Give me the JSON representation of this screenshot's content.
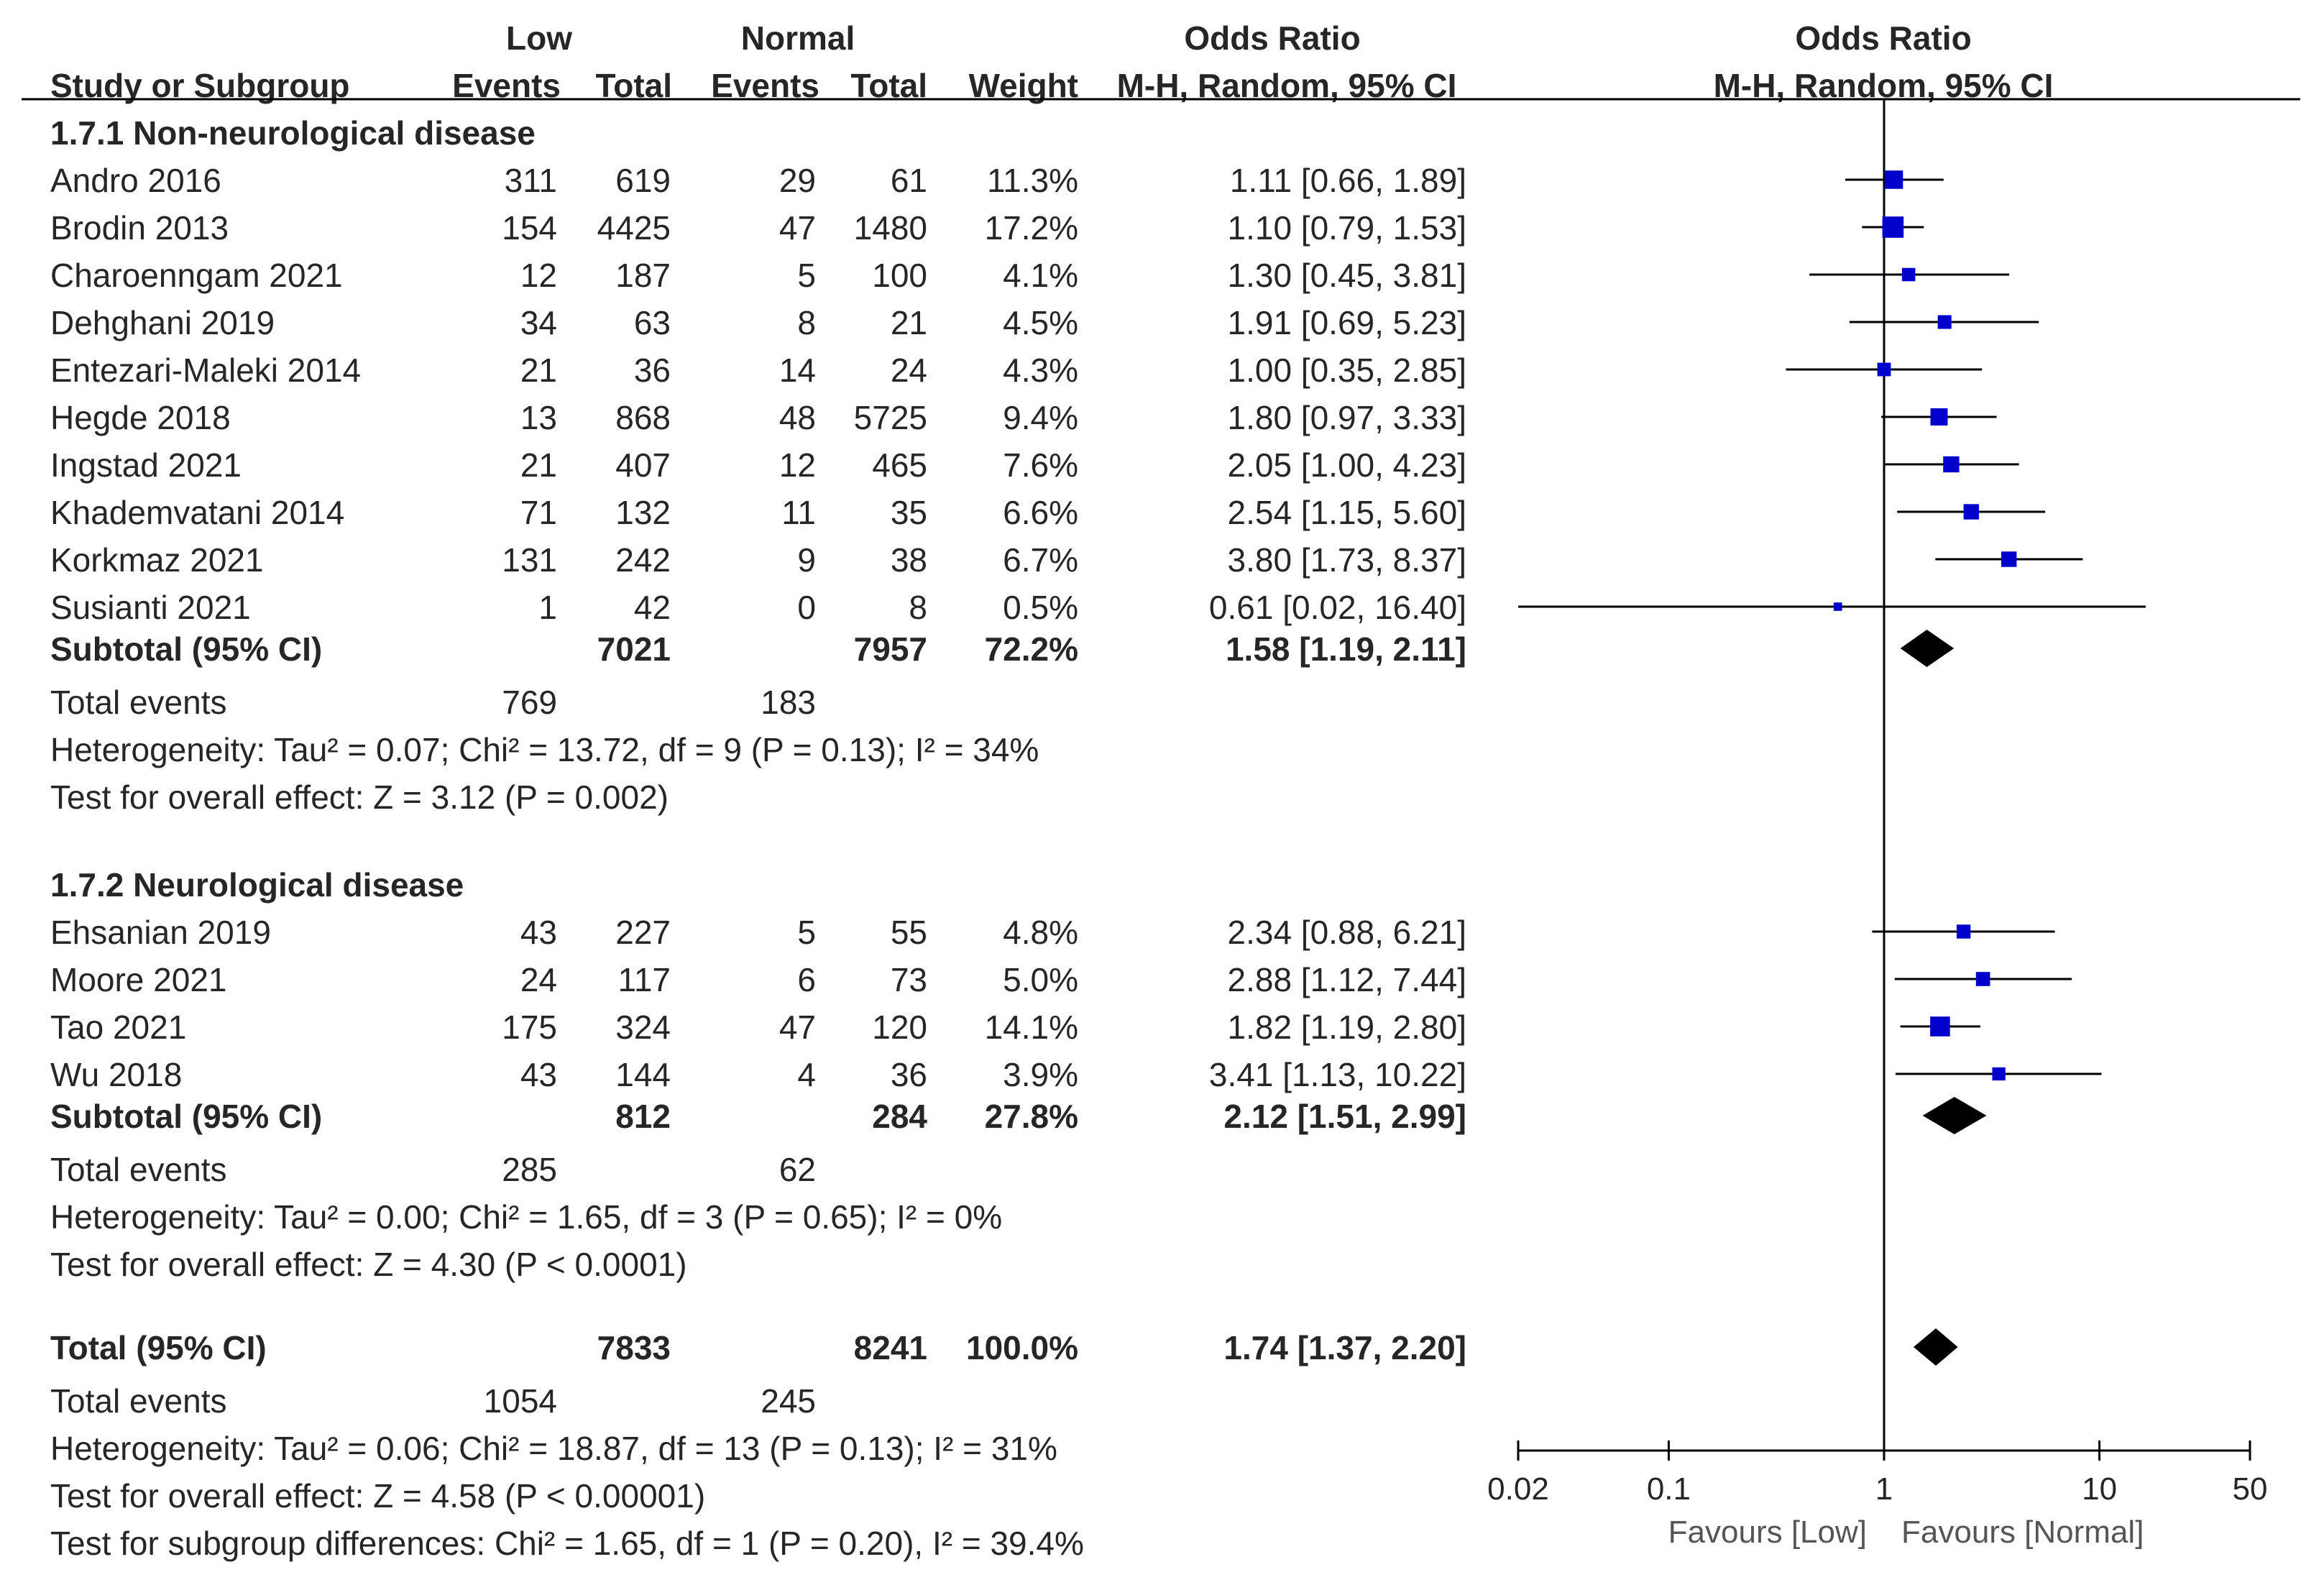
{
  "headers": {
    "low": "Low",
    "normal": "Normal",
    "odds_ratio_table": "Odds Ratio",
    "odds_ratio_plot": "Odds Ratio",
    "study": "Study or Subgroup",
    "events_low": "Events",
    "total_low": "Total",
    "events_normal": "Events",
    "total_normal": "Total",
    "weight": "Weight",
    "method_table": "M-H, Random, 95% CI",
    "method_plot": "M-H, Random, 95% CI"
  },
  "groups": [
    {
      "title": "1.7.1 Non-neurological disease",
      "studies": [
        {
          "name": "Andro 2016",
          "ev_low": "311",
          "tot_low": "619",
          "ev_norm": "29",
          "tot_norm": "61",
          "weight": "11.3%",
          "ci_text": "1.11 [0.66, 1.89]"
        },
        {
          "name": "Brodin 2013",
          "ev_low": "154",
          "tot_low": "4425",
          "ev_norm": "47",
          "tot_norm": "1480",
          "weight": "17.2%",
          "ci_text": "1.10 [0.79, 1.53]"
        },
        {
          "name": "Charoenngam 2021",
          "ev_low": "12",
          "tot_low": "187",
          "ev_norm": "5",
          "tot_norm": "100",
          "weight": "4.1%",
          "ci_text": "1.30 [0.45, 3.81]"
        },
        {
          "name": "Dehghani 2019",
          "ev_low": "34",
          "tot_low": "63",
          "ev_norm": "8",
          "tot_norm": "21",
          "weight": "4.5%",
          "ci_text": "1.91 [0.69, 5.23]"
        },
        {
          "name": "Entezari-Maleki 2014",
          "ev_low": "21",
          "tot_low": "36",
          "ev_norm": "14",
          "tot_norm": "24",
          "weight": "4.3%",
          "ci_text": "1.00 [0.35, 2.85]"
        },
        {
          "name": "Hegde 2018",
          "ev_low": "13",
          "tot_low": "868",
          "ev_norm": "48",
          "tot_norm": "5725",
          "weight": "9.4%",
          "ci_text": "1.80 [0.97, 3.33]"
        },
        {
          "name": "Ingstad 2021",
          "ev_low": "21",
          "tot_low": "407",
          "ev_norm": "12",
          "tot_norm": "465",
          "weight": "7.6%",
          "ci_text": "2.05 [1.00, 4.23]"
        },
        {
          "name": "Khademvatani 2014",
          "ev_low": "71",
          "tot_low": "132",
          "ev_norm": "11",
          "tot_norm": "35",
          "weight": "6.6%",
          "ci_text": "2.54 [1.15, 5.60]"
        },
        {
          "name": "Korkmaz 2021",
          "ev_low": "131",
          "tot_low": "242",
          "ev_norm": "9",
          "tot_norm": "38",
          "weight": "6.7%",
          "ci_text": "3.80 [1.73, 8.37]"
        },
        {
          "name": "Susianti 2021",
          "ev_low": "1",
          "tot_low": "42",
          "ev_norm": "0",
          "tot_norm": "8",
          "weight": "0.5%",
          "ci_text": "0.61 [0.02, 16.40]"
        }
      ],
      "subtotal": {
        "label": "Subtotal (95% CI)",
        "tot_low": "7021",
        "tot_norm": "7957",
        "weight": "72.2%",
        "ci_text": "1.58 [1.19, 2.11]"
      },
      "total_events": {
        "label": "Total events",
        "low": "769",
        "normal": "183"
      },
      "heterogeneity": "Heterogeneity: Tau² = 0.07; Chi² = 13.72, df = 9 (P = 0.13); I² = 34%",
      "overall": "Test for overall effect: Z = 3.12 (P = 0.002)"
    },
    {
      "title": "1.7.2 Neurological disease",
      "studies": [
        {
          "name": "Ehsanian 2019",
          "ev_low": "43",
          "tot_low": "227",
          "ev_norm": "5",
          "tot_norm": "55",
          "weight": "4.8%",
          "ci_text": "2.34 [0.88, 6.21]"
        },
        {
          "name": "Moore 2021",
          "ev_low": "24",
          "tot_low": "117",
          "ev_norm": "6",
          "tot_norm": "73",
          "weight": "5.0%",
          "ci_text": "2.88 [1.12, 7.44]"
        },
        {
          "name": "Tao 2021",
          "ev_low": "175",
          "tot_low": "324",
          "ev_norm": "47",
          "tot_norm": "120",
          "weight": "14.1%",
          "ci_text": "1.82 [1.19, 2.80]"
        },
        {
          "name": "Wu 2018",
          "ev_low": "43",
          "tot_low": "144",
          "ev_norm": "4",
          "tot_norm": "36",
          "weight": "3.9%",
          "ci_text": "3.41 [1.13, 10.22]"
        }
      ],
      "subtotal": {
        "label": "Subtotal (95% CI)",
        "tot_low": "812",
        "tot_norm": "284",
        "weight": "27.8%",
        "ci_text": "2.12 [1.51, 2.99]"
      },
      "total_events": {
        "label": "Total events",
        "low": "285",
        "normal": "62"
      },
      "heterogeneity": "Heterogeneity: Tau² = 0.00; Chi² = 1.65, df = 3 (P = 0.65); I² = 0%",
      "overall": "Test for overall effect: Z = 4.30 (P < 0.0001)"
    }
  ],
  "total": {
    "label": "Total (95% CI)",
    "tot_low": "7833",
    "tot_norm": "8241",
    "weight": "100.0%",
    "ci_text": "1.74 [1.37, 2.20]"
  },
  "total_events": {
    "label": "Total events",
    "low": "1054",
    "normal": "245"
  },
  "heterogeneity": "Heterogeneity: Tau² = 0.06; Chi² = 18.87, df = 13 (P = 0.13); I² = 31%",
  "overall": "Test for overall effect: Z = 4.58 (P < 0.00001)",
  "subgroup_diff": "Test for subgroup differences: Chi² = 1.65, df = 1 (P = 0.20), I² = 39.4%",
  "chart_data": {
    "type": "forest",
    "scale": "log",
    "xlim": [
      0.02,
      50
    ],
    "ticks": [
      "0.02",
      "0.1",
      "1",
      "10",
      "50"
    ],
    "reference_line": 1,
    "xlabel_left": "Favours [Low]",
    "xlabel_right": "Favours [Normal]",
    "title": "Odds Ratio",
    "subtitle": "M-H, Random, 95% CI",
    "marker_color": "#0000CC",
    "diamond_color": "#000000",
    "studies": [
      {
        "name": "Andro 2016",
        "or": 1.11,
        "lo": 0.66,
        "hi": 1.89,
        "weight": 11.3
      },
      {
        "name": "Brodin 2013",
        "or": 1.1,
        "lo": 0.79,
        "hi": 1.53,
        "weight": 17.2
      },
      {
        "name": "Charoenngam 2021",
        "or": 1.3,
        "lo": 0.45,
        "hi": 3.81,
        "weight": 4.1
      },
      {
        "name": "Dehghani 2019",
        "or": 1.91,
        "lo": 0.69,
        "hi": 5.23,
        "weight": 4.5
      },
      {
        "name": "Entezari-Maleki 2014",
        "or": 1.0,
        "lo": 0.35,
        "hi": 2.85,
        "weight": 4.3
      },
      {
        "name": "Hegde 2018",
        "or": 1.8,
        "lo": 0.97,
        "hi": 3.33,
        "weight": 9.4
      },
      {
        "name": "Ingstad 2021",
        "or": 2.05,
        "lo": 1.0,
        "hi": 4.23,
        "weight": 7.6
      },
      {
        "name": "Khademvatani 2014",
        "or": 2.54,
        "lo": 1.15,
        "hi": 5.6,
        "weight": 6.6
      },
      {
        "name": "Korkmaz 2021",
        "or": 3.8,
        "lo": 1.73,
        "hi": 8.37,
        "weight": 6.7
      },
      {
        "name": "Susianti 2021",
        "or": 0.61,
        "lo": 0.02,
        "hi": 16.4,
        "weight": 0.5
      },
      {
        "name": "Ehsanian 2019",
        "or": 2.34,
        "lo": 0.88,
        "hi": 6.21,
        "weight": 4.8
      },
      {
        "name": "Moore 2021",
        "or": 2.88,
        "lo": 1.12,
        "hi": 7.44,
        "weight": 5.0
      },
      {
        "name": "Tao 2021",
        "or": 1.82,
        "lo": 1.19,
        "hi": 2.8,
        "weight": 14.1
      },
      {
        "name": "Wu 2018",
        "or": 3.41,
        "lo": 1.13,
        "hi": 10.22,
        "weight": 3.9
      }
    ],
    "diamonds": [
      {
        "name": "Subtotal 1.7.1",
        "or": 1.58,
        "lo": 1.19,
        "hi": 2.11
      },
      {
        "name": "Subtotal 1.7.2",
        "or": 2.12,
        "lo": 1.51,
        "hi": 2.99
      },
      {
        "name": "Total",
        "or": 1.74,
        "lo": 1.37,
        "hi": 2.2
      }
    ]
  }
}
